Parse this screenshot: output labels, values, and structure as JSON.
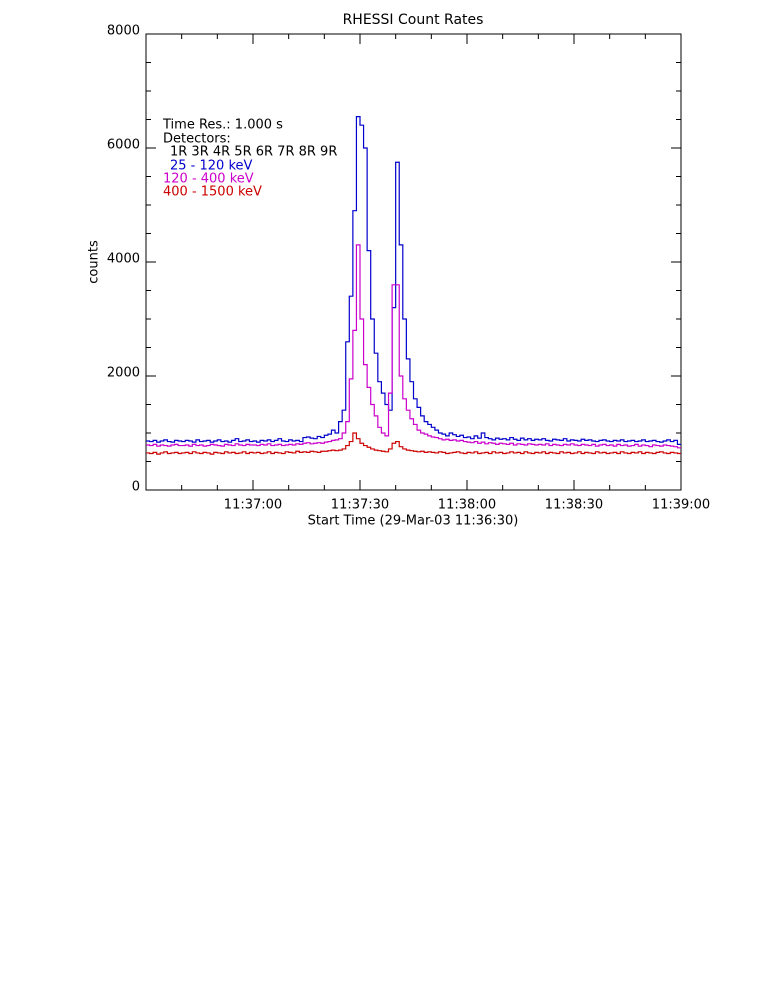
{
  "chart_data": {
    "type": "step",
    "title": "RHESSI Count Rates",
    "ylabel": "counts",
    "xlabel": "Start Time (29-Mar-03 11:36:30)",
    "annotations": [
      "Time Res.: 1.000 s",
      "Detectors:",
      "1R 3R 4R 5R 6R 7R 8R 9R"
    ],
    "xlim": [
      0,
      150
    ],
    "xticks": [
      {
        "value": 30,
        "label": "11:37:00"
      },
      {
        "value": 60,
        "label": "11:37:30"
      },
      {
        "value": 90,
        "label": "11:38:00"
      },
      {
        "value": 120,
        "label": "11:38:30"
      },
      {
        "value": 150,
        "label": "11:39:00"
      }
    ],
    "ylim": [
      0,
      8000
    ],
    "yticks": [
      0,
      2000,
      4000,
      6000,
      8000
    ],
    "x": [
      0,
      1,
      2,
      3,
      4,
      5,
      6,
      7,
      8,
      9,
      10,
      11,
      12,
      13,
      14,
      15,
      16,
      17,
      18,
      19,
      20,
      21,
      22,
      23,
      24,
      25,
      26,
      27,
      28,
      29,
      30,
      31,
      32,
      33,
      34,
      35,
      36,
      37,
      38,
      39,
      40,
      41,
      42,
      43,
      44,
      45,
      46,
      47,
      48,
      49,
      50,
      51,
      52,
      53,
      54,
      55,
      56,
      57,
      58,
      59,
      60,
      61,
      62,
      63,
      64,
      65,
      66,
      67,
      68,
      69,
      70,
      71,
      72,
      73,
      74,
      75,
      76,
      77,
      78,
      79,
      80,
      81,
      82,
      83,
      84,
      85,
      86,
      87,
      88,
      89,
      90,
      91,
      92,
      93,
      94,
      95,
      96,
      97,
      98,
      99,
      100,
      101,
      102,
      103,
      104,
      105,
      106,
      107,
      108,
      109,
      110,
      111,
      112,
      113,
      114,
      115,
      116,
      117,
      118,
      119,
      120,
      121,
      122,
      123,
      124,
      125,
      126,
      127,
      128,
      129,
      130,
      131,
      132,
      133,
      134,
      135,
      136,
      137,
      138,
      139,
      140,
      141,
      142,
      143,
      144,
      145,
      146,
      147,
      148,
      149
    ],
    "series": [
      {
        "name": "25 - 120 keV",
        "color": "#0000cc",
        "values": [
          860,
          850,
          870,
          840,
          860,
          880,
          850,
          840,
          870,
          860,
          850,
          870,
          860,
          840,
          880,
          850,
          860,
          870,
          840,
          860,
          880,
          850,
          860,
          840,
          870,
          900,
          850,
          860,
          880,
          850,
          860,
          840,
          870,
          860,
          880,
          850,
          870,
          900,
          860,
          850,
          880,
          860,
          870,
          850,
          920,
          930,
          910,
          900,
          940,
          920,
          960,
          980,
          1050,
          1000,
          1200,
          1400,
          2600,
          3400,
          4900,
          6550,
          6400,
          6000,
          4200,
          3000,
          2400,
          1900,
          1700,
          1500,
          1400,
          3200,
          5750,
          4300,
          3000,
          2300,
          1900,
          1600,
          1450,
          1300,
          1200,
          1150,
          1100,
          1050,
          1000,
          980,
          950,
          1000,
          970,
          940,
          960,
          920,
          930,
          900,
          950,
          910,
          1000,
          920,
          900,
          880,
          910,
          890,
          900,
          880,
          920,
          890,
          870,
          910,
          880,
          900,
          870,
          890,
          880,
          900,
          870,
          860,
          890,
          880,
          870,
          900,
          860,
          880,
          870,
          860,
          890,
          870,
          880,
          860,
          850,
          870,
          880,
          860,
          850,
          870,
          860,
          880,
          850,
          860,
          870,
          850,
          860,
          880,
          850,
          860,
          870,
          850,
          840,
          860,
          880,
          850,
          870,
          800
        ]
      },
      {
        "name": "120 - 400 keV",
        "color": "#cc00cc",
        "values": [
          790,
          780,
          800,
          770,
          790,
          780,
          770,
          790,
          800,
          780,
          780,
          790,
          770,
          800,
          780,
          790,
          770,
          780,
          800,
          790,
          780,
          770,
          800,
          790,
          780,
          810,
          790,
          780,
          800,
          790,
          790,
          780,
          800,
          790,
          810,
          780,
          790,
          800,
          780,
          790,
          800,
          790,
          810,
          800,
          820,
          830,
          810,
          820,
          830,
          820,
          840,
          850,
          870,
          880,
          900,
          1000,
          1200,
          1950,
          2800,
          4300,
          3000,
          2200,
          1800,
          1500,
          1300,
          1100,
          1000,
          950,
          1700,
          3600,
          3600,
          2000,
          1600,
          1400,
          1250,
          1150,
          1050,
          1000,
          980,
          950,
          930,
          920,
          900,
          880,
          890,
          870,
          880,
          860,
          870,
          850,
          840,
          830,
          850,
          820,
          840,
          810,
          830,
          820,
          800,
          820,
          810,
          800,
          820,
          790,
          810,
          800,
          790,
          810,
          800,
          790,
          800,
          790,
          810,
          780,
          800,
          790,
          780,
          800,
          790,
          810,
          790,
          780,
          800,
          790,
          780,
          800,
          770,
          790,
          800,
          780,
          790,
          770,
          800,
          780,
          790,
          770,
          780,
          800,
          770,
          790,
          780,
          760,
          790,
          780,
          770,
          790,
          780,
          770,
          760,
          740
        ]
      },
      {
        "name": "400 - 1500 keV",
        "color": "#cc0000",
        "values": [
          650,
          640,
          660,
          630,
          650,
          670,
          640,
          650,
          660,
          640,
          650,
          660,
          640,
          670,
          650,
          640,
          660,
          650,
          630,
          660,
          650,
          640,
          670,
          650,
          660,
          640,
          650,
          670,
          640,
          660,
          650,
          660,
          640,
          650,
          670,
          640,
          660,
          650,
          640,
          670,
          660,
          650,
          680,
          660,
          670,
          660,
          680,
          670,
          660,
          680,
          680,
          690,
          700,
          690,
          700,
          720,
          780,
          850,
          1000,
          900,
          820,
          780,
          750,
          720,
          700,
          690,
          680,
          670,
          720,
          820,
          850,
          760,
          720,
          700,
          690,
          680,
          670,
          680,
          660,
          670,
          660,
          650,
          670,
          660,
          640,
          650,
          660,
          670,
          650,
          640,
          660,
          650,
          670,
          640,
          650,
          660,
          640,
          670,
          650,
          660,
          640,
          650,
          670,
          650,
          660,
          640,
          670,
          650,
          640,
          660,
          650,
          670,
          640,
          660,
          650,
          640,
          670,
          650,
          660,
          640,
          650,
          670,
          640,
          660,
          650,
          640,
          670,
          650,
          660,
          640,
          650,
          660,
          640,
          670,
          650,
          640,
          660,
          650,
          670,
          640,
          660,
          650,
          640,
          660,
          670,
          650,
          640,
          660,
          650,
          640
        ]
      }
    ]
  }
}
